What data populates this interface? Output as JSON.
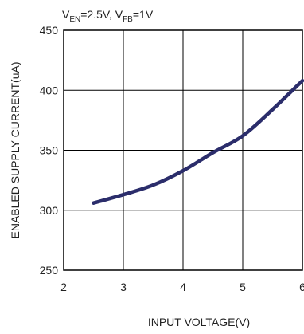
{
  "chart_data": {
    "type": "line",
    "conditions": {
      "v_en": {
        "main": "V",
        "sub": "EN",
        "value": "=2.5V, "
      },
      "v_fb": {
        "main": "V",
        "sub": "FB",
        "value": "=1V"
      }
    },
    "xlabel": "INPUT VOLTAGE(V)",
    "ylabel": "ENABLED SUPPLY CURRENT(uA)",
    "xlim": [
      2,
      6
    ],
    "ylim": [
      250,
      450
    ],
    "xticks": [
      "2",
      "3",
      "4",
      "5",
      "6"
    ],
    "yticks": [
      "250",
      "300",
      "350",
      "400",
      "450"
    ],
    "grid": true,
    "legend": "none",
    "colors": {
      "line": "#2b2d6b",
      "grid": "#000000"
    },
    "series": [
      {
        "x": [
          2.5,
          3.0,
          3.5,
          4.0,
          4.5,
          5.0,
          5.5,
          6.0
        ],
        "y": [
          306,
          313,
          321,
          333,
          348,
          362,
          384,
          408
        ]
      }
    ]
  }
}
